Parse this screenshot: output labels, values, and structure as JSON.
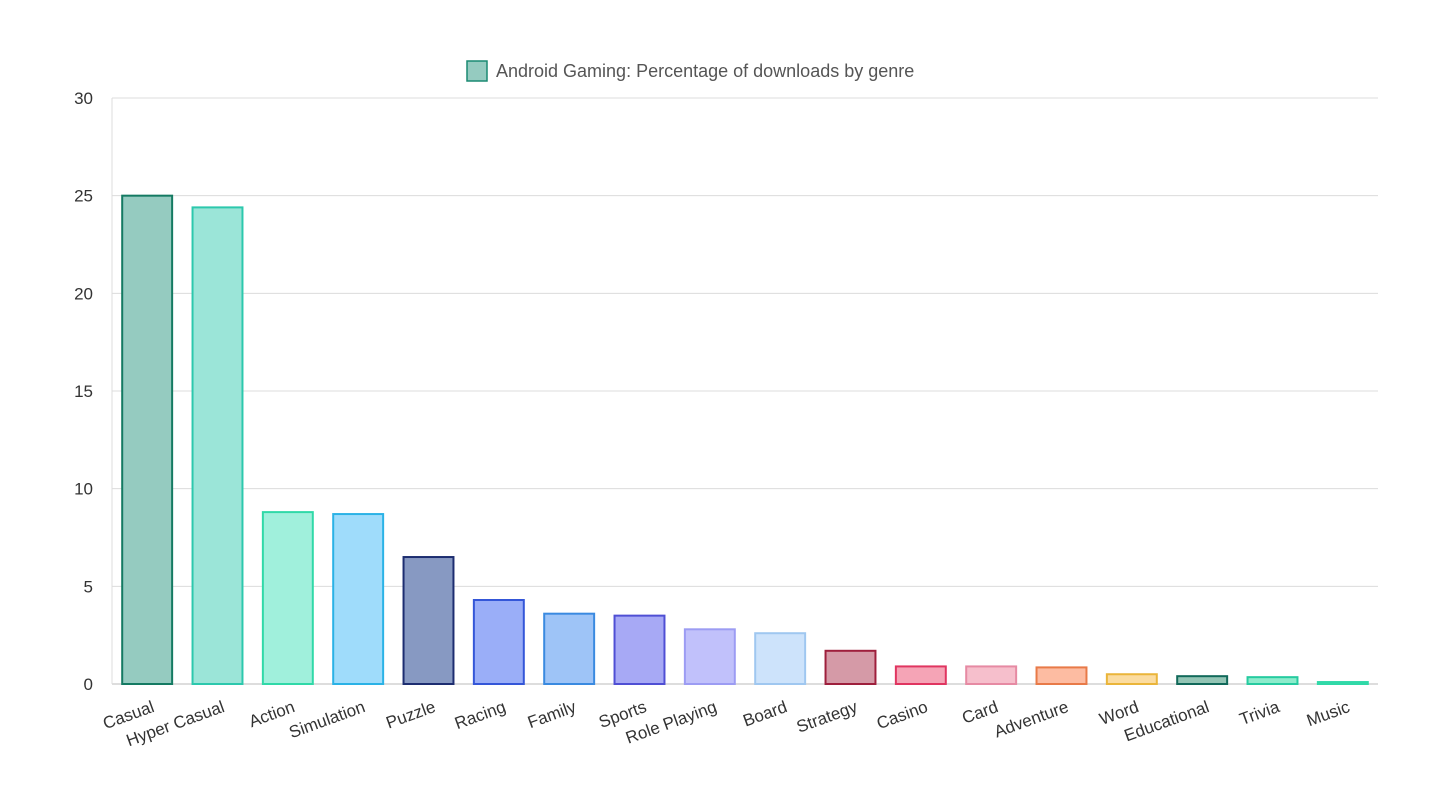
{
  "chart_data": {
    "type": "bar",
    "legend": {
      "label": "Android Gaming: Percentage of downloads by genre",
      "position": "top-center",
      "swatch_fill": "#95cbc0",
      "swatch_stroke": "#1a8a72"
    },
    "ylim": [
      0,
      30
    ],
    "yticks": [
      "0",
      "5",
      "10",
      "15",
      "20",
      "25",
      "30"
    ],
    "grid": true,
    "categories": [
      "Casual",
      "Hyper Casual",
      "Action",
      "Simulation",
      "Puzzle",
      "Racing",
      "Family",
      "Sports",
      "Role Playing",
      "Board",
      "Strategy",
      "Casino",
      "Card",
      "Adventure",
      "Word",
      "Educational",
      "Trivia",
      "Music"
    ],
    "series": [
      {
        "values": [
          25.0,
          24.4,
          8.8,
          8.7,
          6.5,
          4.3,
          3.6,
          3.5,
          2.8,
          2.6,
          1.7,
          0.9,
          0.9,
          0.85,
          0.5,
          0.4,
          0.35,
          0.1
        ],
        "fills": [
          "#95cbc0",
          "#9be5d8",
          "#a0f0dc",
          "#9fdcfb",
          "#8799c2",
          "#9aaef8",
          "#9ec4f7",
          "#a7a9f5",
          "#c1c1fb",
          "#cde3fb",
          "#d59aa7",
          "#f5a4b6",
          "#f6bfcc",
          "#fdbca2",
          "#fbdca0",
          "#93c5b5",
          "#8deccc",
          "#a0f0dc"
        ],
        "strokes": [
          "#147a62",
          "#2cc8ad",
          "#30d9a8",
          "#2ab2e6",
          "#1d2d70",
          "#3456d8",
          "#3a8ae0",
          "#4f4fd4",
          "#9c9cf3",
          "#9fc7f0",
          "#9e1f3c",
          "#e03560",
          "#e68aa3",
          "#e87a48",
          "#eab53a",
          "#11695a",
          "#26cba0",
          "#30d9a8"
        ]
      }
    ]
  }
}
